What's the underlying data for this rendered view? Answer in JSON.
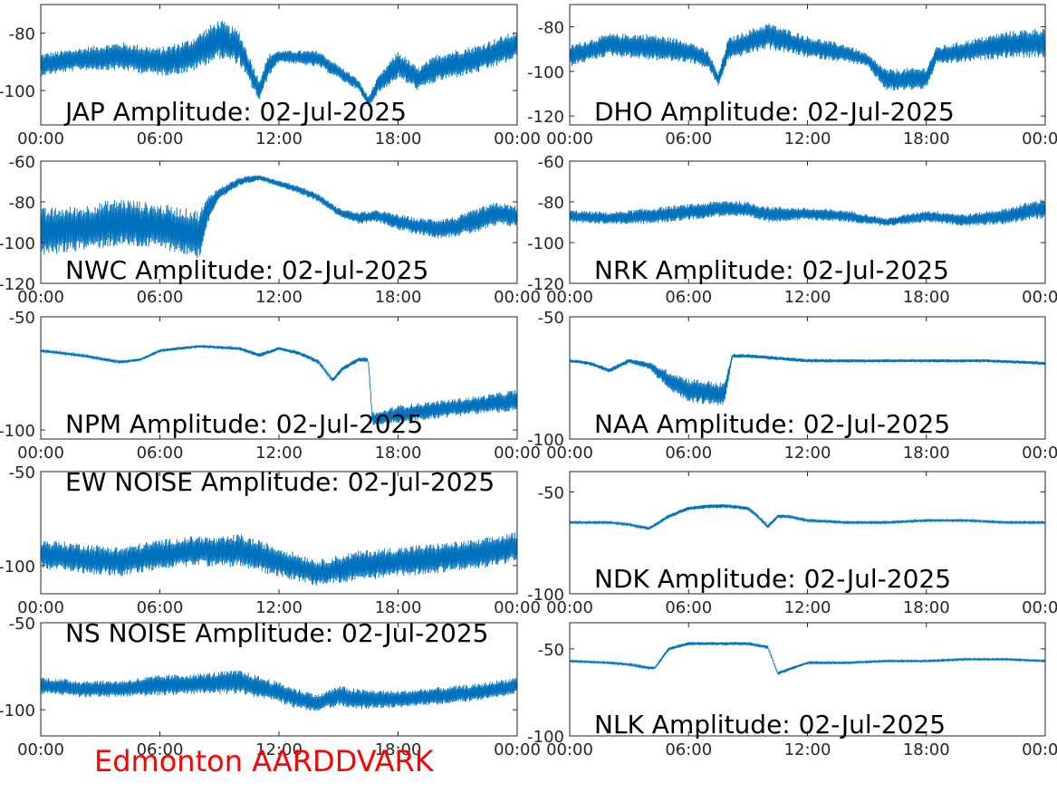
{
  "colors": {
    "series": "#0072bd",
    "site_label": "#ff0000",
    "axis": "#262626"
  },
  "site_label": "Edmonton AARDDVARK",
  "chart_data": [
    {
      "type": "line",
      "title": "JAP Amplitude: 02-Jul-2025",
      "xlabel": "",
      "ylabel": "",
      "xlim": [
        0,
        24
      ],
      "x_ticks": [
        "00:00",
        "06:00",
        "12:00",
        "18:00",
        "00:00"
      ],
      "ylim": [
        -112,
        -70
      ],
      "y_ticks": [
        -80,
        -100
      ],
      "grid": false,
      "series": [
        {
          "color": "#0072bd",
          "x": [
            0,
            2,
            4,
            6,
            7.5,
            9,
            10,
            11,
            11.5,
            12,
            14,
            16,
            16.5,
            17,
            18,
            19,
            20,
            22,
            24
          ],
          "center": [
            -91,
            -89,
            -88,
            -90,
            -88,
            -82,
            -85,
            -100,
            -91,
            -88,
            -89,
            -98,
            -104,
            -98,
            -91,
            -96,
            -92,
            -89,
            -84
          ],
          "spread": [
            4,
            4,
            5,
            5,
            6,
            7,
            6,
            4,
            4,
            2,
            3,
            2,
            2,
            3,
            5,
            4,
            5,
            5,
            5
          ]
        }
      ]
    },
    {
      "type": "line",
      "title": "DHO Amplitude: 02-Jul-2025",
      "xlabel": "",
      "ylabel": "",
      "xlim": [
        0,
        24
      ],
      "x_ticks": [
        "00:00",
        "06:00",
        "12:00",
        "18:00",
        "00:00"
      ],
      "ylim": [
        -124,
        -70
      ],
      "y_ticks": [
        -80,
        -100,
        -120
      ],
      "grid": false,
      "series": [
        {
          "color": "#0072bd",
          "x": [
            0,
            2,
            4,
            6,
            7,
            7.5,
            8,
            10,
            12,
            14,
            15,
            16,
            18,
            18.5,
            20,
            22,
            24
          ],
          "center": [
            -93,
            -88,
            -89,
            -91,
            -95,
            -104,
            -90,
            -84,
            -89,
            -92,
            -95,
            -104,
            -103,
            -93,
            -91,
            -88,
            -87
          ],
          "spread": [
            5,
            5,
            6,
            5,
            4,
            3,
            5,
            6,
            5,
            4,
            3,
            5,
            5,
            4,
            5,
            6,
            7
          ]
        }
      ]
    },
    {
      "type": "line",
      "title": "NWC Amplitude: 02-Jul-2025",
      "xlabel": "",
      "ylabel": "",
      "xlim": [
        0,
        24
      ],
      "x_ticks": [
        "00:00",
        "06:00",
        "12:00",
        "18:00",
        "00:00"
      ],
      "ylim": [
        -120,
        -60
      ],
      "y_ticks": [
        -60,
        -80,
        -100,
        -120
      ],
      "grid": false,
      "series": [
        {
          "color": "#0072bd",
          "x": [
            0,
            2,
            4,
            6,
            8,
            8.5,
            9,
            10,
            11,
            12,
            13,
            14,
            15,
            16,
            17,
            18,
            19,
            20,
            21,
            22,
            23,
            24
          ],
          "center": [
            -95,
            -93,
            -90,
            -92,
            -96,
            -82,
            -76,
            -70,
            -68,
            -71,
            -74,
            -78,
            -85,
            -88,
            -87,
            -90,
            -92,
            -93,
            -92,
            -89,
            -86,
            -87
          ],
          "spread": [
            12,
            11,
            12,
            11,
            12,
            6,
            3,
            2,
            1.5,
            1.5,
            2,
            2,
            2,
            3,
            3,
            4,
            4,
            5,
            5,
            6,
            6,
            5
          ]
        }
      ]
    },
    {
      "type": "line",
      "title": "NRK Amplitude: 02-Jul-2025",
      "xlabel": "",
      "ylabel": "",
      "xlim": [
        0,
        24
      ],
      "x_ticks": [
        "00:00",
        "06:00",
        "12:00",
        "18:00",
        "00:00"
      ],
      "ylim": [
        -120,
        -60
      ],
      "y_ticks": [
        -60,
        -80,
        -100,
        -120
      ],
      "grid": false,
      "series": [
        {
          "color": "#0072bd",
          "x": [
            0,
            2,
            4,
            6,
            8,
            9,
            10,
            12,
            14,
            16,
            18,
            20,
            22,
            24
          ],
          "center": [
            -87,
            -88,
            -87,
            -85,
            -83,
            -84,
            -86,
            -86,
            -87,
            -90,
            -87,
            -89,
            -87,
            -83
          ],
          "spread": [
            3,
            3,
            4,
            4,
            4,
            4,
            4,
            3,
            3,
            2,
            3,
            3,
            4,
            5
          ]
        }
      ]
    },
    {
      "type": "line",
      "title": "NPM Amplitude: 02-Jul-2025",
      "xlabel": "",
      "ylabel": "",
      "xlim": [
        0,
        24
      ],
      "x_ticks": [
        "00:00",
        "06:00",
        "12:00",
        "18:00",
        "00:00"
      ],
      "ylim": [
        -104,
        -50
      ],
      "y_ticks": [
        -50,
        -100
      ],
      "grid": false,
      "series": [
        {
          "color": "#0072bd",
          "x": [
            0,
            2,
            4,
            5,
            6,
            8,
            10,
            11,
            12,
            13,
            14,
            14.7,
            15.2,
            16,
            16.5,
            16.7,
            17,
            18,
            20,
            22,
            24
          ],
          "center": [
            -65,
            -67,
            -70,
            -69,
            -65,
            -63,
            -64,
            -67,
            -64,
            -66,
            -70,
            -78,
            -73,
            -69,
            -69,
            -95,
            -95,
            -93,
            -91,
            -89,
            -87
          ],
          "spread": [
            0.6,
            0.6,
            0.7,
            0.6,
            0.7,
            0.6,
            0.7,
            1,
            0.7,
            1,
            1,
            1,
            1,
            1,
            1,
            3,
            3,
            4,
            4,
            4,
            5
          ]
        }
      ]
    },
    {
      "type": "line",
      "title": "NAA Amplitude: 02-Jul-2025",
      "xlabel": "",
      "ylabel": "",
      "xlim": [
        0,
        24
      ],
      "x_ticks": [
        "00:00",
        "06:00",
        "12:00",
        "18:00",
        "00:00"
      ],
      "ylim": [
        -100,
        -50
      ],
      "y_ticks": [
        -50,
        -100
      ],
      "grid": false,
      "series": [
        {
          "color": "#0072bd",
          "x": [
            0,
            1,
            2,
            3,
            4,
            5,
            6,
            7,
            7.8,
            8.2,
            9,
            12,
            15,
            18,
            21,
            24
          ],
          "center": [
            -68,
            -69,
            -72,
            -68,
            -70,
            -76,
            -80,
            -81,
            -82,
            -66,
            -66,
            -68,
            -68,
            -68,
            -68,
            -69
          ],
          "spread": [
            0.7,
            0.8,
            1,
            1,
            1.5,
            4,
            5,
            5,
            5,
            0.8,
            0.8,
            0.8,
            0.7,
            0.7,
            0.7,
            0.7
          ]
        }
      ]
    },
    {
      "type": "line",
      "title": "EW NOISE Amplitude: 02-Jul-2025",
      "xlabel": "",
      "ylabel": "",
      "xlim": [
        0,
        24
      ],
      "x_ticks": [
        "00:00",
        "06:00",
        "12:00",
        "18:00",
        "00:00"
      ],
      "ylim": [
        -115,
        -50
      ],
      "y_ticks": [
        -50,
        -100
      ],
      "grid": false,
      "series": [
        {
          "color": "#0072bd",
          "x": [
            0,
            2,
            4,
            6,
            8,
            9,
            10,
            12,
            14,
            16,
            18,
            20,
            22,
            24
          ],
          "center": [
            -94,
            -96,
            -98,
            -94,
            -92,
            -93,
            -92,
            -98,
            -104,
            -100,
            -98,
            -96,
            -94,
            -90
          ],
          "spread": [
            8,
            8,
            8,
            8,
            8,
            8,
            9,
            8,
            7,
            8,
            8,
            8,
            8,
            8
          ]
        }
      ]
    },
    {
      "type": "line",
      "title": "NDK Amplitude: 02-Jul-2025",
      "xlabel": "",
      "ylabel": "",
      "xlim": [
        0,
        24
      ],
      "x_ticks": [
        "00:00",
        "06:00",
        "12:00",
        "18:00",
        "00:00"
      ],
      "ylim": [
        -100,
        -40
      ],
      "y_ticks": [
        -50,
        -100
      ],
      "grid": false,
      "series": [
        {
          "color": "#0072bd",
          "x": [
            0,
            2,
            3,
            4,
            5,
            6,
            7,
            8,
            9,
            9.5,
            10,
            10.5,
            11,
            12,
            14,
            16,
            18,
            20,
            22,
            24
          ],
          "center": [
            -65,
            -65,
            -66,
            -68,
            -62,
            -58,
            -57,
            -57,
            -58,
            -62,
            -67,
            -62,
            -62,
            -64,
            -65,
            -65,
            -64,
            -64,
            -65,
            -65
          ],
          "spread": [
            0.5,
            0.5,
            0.6,
            0.8,
            1,
            1,
            1,
            1,
            1,
            1,
            1,
            1,
            0.8,
            0.6,
            0.5,
            0.5,
            0.5,
            0.5,
            0.5,
            0.5
          ]
        }
      ]
    },
    {
      "type": "line",
      "title": "NS NOISE Amplitude: 02-Jul-2025",
      "xlabel": "",
      "ylabel": "",
      "xlim": [
        0,
        24
      ],
      "x_ticks": [
        "00:00",
        "06:00",
        "12:00",
        "18:00",
        "00:00"
      ],
      "ylim": [
        -115,
        -50
      ],
      "y_ticks": [
        -50,
        -100
      ],
      "grid": false,
      "series": [
        {
          "color": "#0072bd",
          "x": [
            0,
            2,
            4,
            6,
            8,
            10,
            12,
            13,
            14,
            15,
            16,
            18,
            20,
            22,
            24
          ],
          "center": [
            -86,
            -88,
            -88,
            -86,
            -85,
            -84,
            -90,
            -94,
            -96,
            -92,
            -94,
            -94,
            -92,
            -90,
            -86
          ],
          "spread": [
            5,
            5,
            5,
            6,
            6,
            7,
            6,
            6,
            5,
            6,
            6,
            5,
            5,
            5,
            5
          ]
        }
      ]
    },
    {
      "type": "line",
      "title": "NLK Amplitude: 02-Jul-2025",
      "xlabel": "",
      "ylabel": "",
      "xlim": [
        0,
        24
      ],
      "x_ticks": [
        "00:00",
        "06:00",
        "12:00",
        "18:00",
        "00:00"
      ],
      "ylim": [
        -100,
        -35
      ],
      "y_ticks": [
        -50,
        -100
      ],
      "grid": false,
      "series": [
        {
          "color": "#0072bd",
          "x": [
            0,
            2,
            3,
            4,
            4.3,
            5,
            6,
            8,
            9,
            10,
            10.5,
            11,
            12,
            14,
            16,
            18,
            20,
            22,
            24
          ],
          "center": [
            -57,
            -58,
            -59,
            -61,
            -61,
            -50,
            -47,
            -47,
            -47,
            -49,
            -64,
            -62,
            -58,
            -58,
            -57,
            -57,
            -56,
            -56,
            -57
          ],
          "spread": [
            0.5,
            0.5,
            0.6,
            0.8,
            0.8,
            1,
            1,
            1,
            1,
            1,
            1,
            1,
            0.6,
            0.5,
            0.5,
            0.5,
            0.5,
            0.5,
            0.5
          ]
        }
      ]
    }
  ]
}
